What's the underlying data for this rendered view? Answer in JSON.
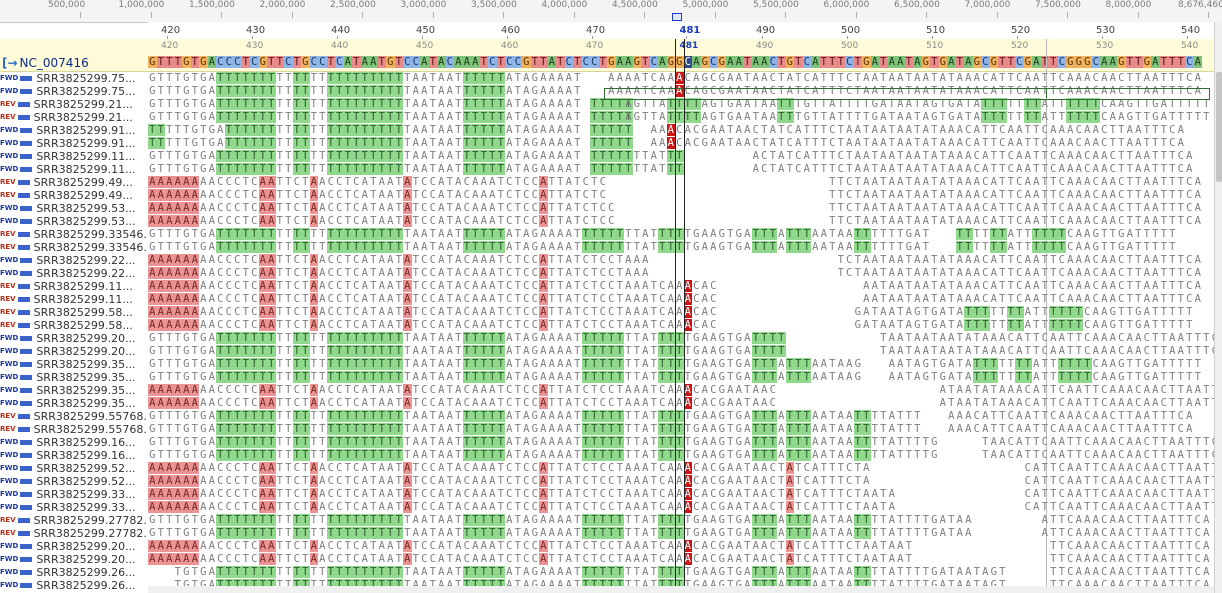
{
  "overview": {
    "ticks": [
      "500,000",
      "1,000,000",
      "1,500,000",
      "2,000,000",
      "2,500,000",
      "3,000,000",
      "3,500,000",
      "4,000,000",
      "4,500,000",
      "5,000,000",
      "5,500,000",
      "6,000,000",
      "6,500,000",
      "7,000,000",
      "7,500,000",
      "8,000,000",
      "8,676,460"
    ]
  },
  "ruler": {
    "labels": [
      "420",
      "430",
      "440",
      "450",
      "460",
      "470",
      "481",
      "490",
      "500",
      "510",
      "520",
      "530",
      "540"
    ],
    "highlight": "481"
  },
  "reference": {
    "name": "NC_007416",
    "icon": "reference-sequence-icon",
    "tick_labels": [
      "420",
      "430",
      "440",
      "450",
      "460",
      "470",
      "481",
      "490",
      "500",
      "510",
      "520",
      "530",
      "540"
    ],
    "sequence": "GTTTGTGACCCTCGTTCTGCCTCATAATGTCCATACAAATCTCCGTTATCTCCTGAAGTCAGGCAGCGAATAACTGTCATTTCTGATAATAGTGATAGCGTTCGATTCGGGCAAGTTGATTTCA",
    "cursor_base": "G"
  },
  "colors": {
    "match_green": "#8fd88c",
    "mismatch_red": "#ec9494",
    "snp_red": "#cc1616",
    "cursor_blue": "#1a3cc8",
    "reference_band": "#fdfbd8"
  },
  "reads": [
    {
      "name": "SRR3825299.75...",
      "dir": "FWD",
      "start": 0,
      "seq": "GTTTGTGAGGGGGGGTTGGTTGGGGGGGGGTAATAATGGGGGATAGAAAAT"
    },
    {
      "name": "SRR3825299.75...",
      "dir": "FWD",
      "start": 0,
      "seq": "GTTTGTGAGGGGGGGTTGGTTGGGGGGGGGTAATAATGGGGGATAGAAAAT"
    },
    {
      "name": "SRR3825299.21...",
      "dir": "REV",
      "start": 0,
      "seq": "GTTTGTGAGGGGGGGTTGGTTGGGGGGGGGTAATAATGGGGGATAGAAAAT GGGGG"
    },
    {
      "name": "SRR3825299.21...",
      "dir": "REV",
      "start": 0,
      "seq": "GTTTGTGAGGGGGGGTTGGTTGGGGGGGGGTAATAATGGGGGATAGAAAAT GGGGG"
    },
    {
      "name": "SRR3825299.91...",
      "dir": "FWD",
      "start": 0,
      "seq": "GGTTTGTGAGGGGGGTTGGTTGGGGGGGGGTAATAATGGGGGATAGAAAAT GGGGG"
    },
    {
      "name": "SRR3825299.91...",
      "dir": "FWD",
      "start": 0,
      "seq": "GGTTTGTGAGGGGGGTTGGTTGGGGGGGGGTAATAATGGGGGATAGAAAAT GGGGG"
    },
    {
      "name": "SRR3825299.11...",
      "dir": "FWD",
      "start": 0,
      "seq": "GTTTGTGAGGGGGGGTTGGTTGGGGGGGGGTAATAATGGGGGATAGAAAAT GGGGGTTATGG"
    },
    {
      "name": "SRR3825299.11...",
      "dir": "FWD",
      "start": 0,
      "seq": "GTTTGTGAGGGGGGGTTGGTTGGGGGGGGGTAATAATGGGGGATAGAAAAT GGGGGTTATGG"
    },
    {
      "name": "SRR3825299.49...",
      "dir": "REV",
      "start": 0,
      "seq": "RRRRRRAACCCTCRRTTCTRACCTCATAATRTCCATACAAATCTCCRTTATCTC"
    },
    {
      "name": "SRR3825299.49...",
      "dir": "REV",
      "start": 0,
      "seq": "RRRRRRAACCCTCRRTTCTRACCTCATAATRTCCATACAAATCTCCRTTATCTC"
    },
    {
      "name": "SRR3825299.53...",
      "dir": "FWD",
      "start": 0,
      "seq": "RRRRRRAACCCTCRRTTCTRACCTCATAATRTCCATACAAATCTCCRTTATCTCC"
    },
    {
      "name": "SRR3825299.53...",
      "dir": "FWD",
      "start": 0,
      "seq": "RRRRRRAACCCTCRRTTCTRACCTCATAATRTCCATACAAATCTCCRTTATCTCC"
    },
    {
      "name": "SRR3825299.33546...",
      "dir": "REV",
      "start": 0,
      "seq": "GTTTGTGAGGGGGGGTTGGTTGGGGGGGGGTAATAATGGGGGATAGAAAATGGGGGTTATGGGTGAAGTGAGGGAGGGAATAAGGTTTTGAT"
    },
    {
      "name": "SRR3825299.33546...",
      "dir": "REV",
      "start": 0,
      "seq": "GTTTGTGAGGGGGGGTTGGTTGGGGGGGGGTAATAATGGGGGATAGAAAATGGGGGTTATGGGTGAAGTGAGGGAGGGAATAAGGTTTTGAT"
    },
    {
      "name": "SRR3825299.22...",
      "dir": "FWD",
      "start": 0,
      "seq": "RRRRRRAACCCTCRRTTCTRACCTCATAATRTCCATACAAATCTCCRTTATCTCCTAAA"
    },
    {
      "name": "SRR3825299.22...",
      "dir": "FWD",
      "start": 0,
      "seq": "RRRRRRAACCCTCRRTTCTRACCTCATAATRTCCATACAAATCTCCRTTATCTCCTAAA"
    },
    {
      "name": "SRR3825299.11...",
      "dir": "REV",
      "start": 0,
      "seq": "RRRRRRAACCCTCRRTTCTRACCTCATAATRTCCATACAAATCTCCRTTATCTCCTAAATCAAXCAC"
    },
    {
      "name": "SRR3825299.11...",
      "dir": "REV",
      "start": 0,
      "seq": "RRRRRRAACCCTCRRTTCTRACCTCATAATRTCCATACAAATCTCCRTTATCTCCTAAATCAAXCAC"
    },
    {
      "name": "SRR3825299.58...",
      "dir": "REV",
      "start": 0,
      "seq": "RRRRRRAACCCTCRRTTCTRACCTCATAATRTCCATACAAATCTCCRTTATCTCCTAAATCAAXCAC"
    },
    {
      "name": "SRR3825299.58...",
      "dir": "REV",
      "start": 0,
      "seq": "RRRRRRAACCCTCRRTTCTRACCTCATAATRTCCATACAAATCTCCRTTATCTCCTAAATCAAXCAC"
    },
    {
      "name": "SRR3825299.20...",
      "dir": "FWD",
      "start": 0,
      "seq": "GTTTGTGAGGGGGGGTTGGTTGGGGGGGGGTAATAATGGGGGATAGAAAATGGGGGTTATGGGTGAAGTGAGGGG"
    },
    {
      "name": "SRR3825299.20...",
      "dir": "FWD",
      "start": 0,
      "seq": "GTTTGTGAGGGGGGGTTGGTTGGGGGGGGGTAATAATGGGGGATAGAAAATGGGGGTTATGGGTGAAGTGAGGGG"
    },
    {
      "name": "SRR3825299.35...",
      "dir": "FWD",
      "start": 0,
      "seq": "GTTTGTGAGGGGGGGTTGGTTGGGGGGGGGTAATAATGGGGGATAGAAAATGGGGGTTATGGGTGAAGTGAGGGAGGGAATAAG"
    },
    {
      "name": "SRR3825299.35...",
      "dir": "FWD",
      "start": 0,
      "seq": "GTTTGTGAGGGGGGGTTGGTTGGGGGGGGGTAATAATGGGGGATAGAAAATGGGGGTTATGGGTGAAGTGAGGGAGGGAATAAG"
    },
    {
      "name": "SRR3825299.35...",
      "dir": "FWD",
      "start": 0,
      "seq": "RRRRRRAACCCTCRRTTCTRACCTCATAATRTCCATACAAATCTCCRTTATCTCCTAAATCAAXCACGAATAAC"
    },
    {
      "name": "SRR3825299.35...",
      "dir": "FWD",
      "start": 0,
      "seq": "RRRRRRAACCCTCRRTTCTRACCTCATAATRTCCATACAAATCTCCRTTATCTCCTAAATCAAXCACGAATAAC"
    },
    {
      "name": "SRR3825299.55768...",
      "dir": "REV",
      "start": 0,
      "seq": "GTTTGTGAGGGGGGGTTGGTTGGGGGGGGGTAATAATGGGGGATAGAAAATGGGGGTTATGGGTGAAGTGAGGGAGGGAATAAGGTTATTT"
    },
    {
      "name": "SRR3825299.55768...",
      "dir": "REV",
      "start": 0,
      "seq": "GTTTGTGAGGGGGGGTTGGTTGGGGGGGGGTAATAATGGGGGATAGAAAATGGGGGTTATGGGTGAAGTGAGGGAGGGAATAAGGTTATTT"
    },
    {
      "name": "SRR3825299.16...",
      "dir": "FWD",
      "start": 0,
      "seq": "GTTTGTGAGGGGGGGTTGGTTGGGGGGGGGTAATAATGGGGGATAGAAAATGGGGGTTATGGGTGAAGTGAGGGAGGGAATAAGGTTATTTTG"
    },
    {
      "name": "SRR3825299.16...",
      "dir": "FWD",
      "start": 0,
      "seq": "GTTTGTGAGGGGGGGTTGGTTGGGGGGGGGTAATAATGGGGGATAGAAAATGGGGGTTATGGGTGAAGTGAGGGAGGGAATAAGGTTATTTTG"
    },
    {
      "name": "SRR3825299.52...",
      "dir": "FWD",
      "start": 0,
      "seq": "RRRRRRAACCCTCRRTTCTRACCTCATAATRTCCATACAAATCTCCRTTATCTCCTAAATCAAXCACGAATAACTRTCATTTCTA"
    },
    {
      "name": "SRR3825299.52...",
      "dir": "FWD",
      "start": 0,
      "seq": "RRRRRRAACCCTCRRTTCTRACCTCATAATRTCCATACAAATCTCCRTTATCTCCTAAATCAAXCACGAATAACTRTCATTTCTA"
    },
    {
      "name": "SRR3825299.33...",
      "dir": "FWD",
      "start": 0,
      "seq": "RRRRRRAACCCTCRRTTCTRACCTCATAATRTCCATACAAATCTCCRTTATCTCCTAAATCAAXCACGAATAACTRTCATTTCTAATA"
    },
    {
      "name": "SRR3825299.33...",
      "dir": "FWD",
      "start": 0,
      "seq": "RRRRRRAACCCTCRRTTCTRACCTCATAATRTCCATACAAATCTCCRTTATCTCCTAAATCAAXCACGAATAACTRTCATTTCTAATA"
    },
    {
      "name": "SRR3825299.27782...",
      "dir": "REV",
      "start": 0,
      "seq": "GTTTGTGAGGGGGGGTTGGTTGGGGGGGGGTAATAATGGGGGATAGAAAATGGGGGTTATGGGTGAAGTGAGGGAGGGAATAAGGTTATTTTGATAA"
    },
    {
      "name": "SRR3825299.27782...",
      "dir": "REV",
      "start": 0,
      "seq": "GTTTGTGAGGGGGGGTTGGTTGGGGGGGGGTAATAATGGGGGATAGAAAATGGGGGTTATGGGTGAAGTGAGGGAGGGAATAAGGTTATTTTGATAA"
    },
    {
      "name": "SRR3825299.20...",
      "dir": "FWD",
      "start": 0,
      "seq": "RRRRRRAACCCTCRRTTCTRACCTCATAATRTCCATACAAATCTCCRTTATCTCCTAAATCAAXCACGAATAACTRTCATTTCTAATAAT"
    },
    {
      "name": "SRR3825299.20...",
      "dir": "FWD",
      "start": 0,
      "seq": "RRRRRRAACCCTCRRTTCTRACCTCATAATRTCCATACAAATCTCCRTTATCTCCTAAATCAAXCACGAATAACTRTCATTTCTAATAAT"
    },
    {
      "name": "SRR3825299.26...",
      "dir": "FWD",
      "start": 3,
      "seq": "TGTGAGGGGGGGTTGGTTGGGGGGGGGTAATAATGGGGGATAGAAAATGGGGGTTATGGGTGAAGTGAGGGAGGGAATAAGGTTATTTTGATAATAGT"
    },
    {
      "name": "SRR3825299.26...",
      "dir": "FWD",
      "start": 3,
      "seq": "TGTGAGGGGGGGTTGGTTGGGGGGGGGTAATAATGGGGGATAGAAAATGGGGGTTATGGGTGAAGTGAGGGAGGGAATAAGGTTATTTTGATAATAGT"
    }
  ],
  "read_tails": [
    {
      "start": 54,
      "seq": "AAAATCAAXCAGCGAATAACTATCATTTCTAATAATAATATAAACATTCAATTCAAACAACTTAATTTCA"
    },
    {
      "start": 54,
      "seq": "AAAATCAAXCAGCGAATAACTATCATTTCTAATAATAATATAAACATTCAATTCAAACAACTTAATTTCA"
    },
    {
      "start": 56,
      "seq": "AGTTAGGGGAGTGAATAAGGTGTTATTTTGATAATAGTGATAGGGTTGGATTGGGGCAAGTTGATTTTT"
    },
    {
      "start": 56,
      "seq": "AGTTAGGGGAGTGAATAAGGTGTTATTTTGATAATAGTGATAGGGTTGGATTGGGGCAAGTTGATTTTT"
    },
    {
      "start": 59,
      "seq": "AAXCACGAATAACTATCATTTCTAATAATAATATAAACATTCAATTCAAACAACTTAATTTCA"
    },
    {
      "start": 59,
      "seq": "AAXCACGAATAACTATCATTTCTAATAATAATATAAACATTCAATTCAAACAACTTAATTTCA"
    },
    {
      "start": 71,
      "seq": "ACTATCATTTCTAATAATAATATAAACATTCAATTCAAACAACTTAATTTCA"
    },
    {
      "start": 71,
      "seq": "ACTATCATTTCTAATAATAATATAAACATTCAATTCAAACAACTTAATTTCA"
    },
    {
      "start": 80,
      "seq": "TTCTAATAATAATATAAACATTCAATTCAAACAACTTAATTTCA"
    },
    {
      "start": 80,
      "seq": "TTCTAATAATAATATAAACATTCAATTCAAACAACTTAATTTCA"
    },
    {
      "start": 80,
      "seq": "TTCTAATAATAATATAAACATTCAATTCAAACAACTTAATTTCA"
    },
    {
      "start": 80,
      "seq": "TTCTAATAATAATATAAACATTCAATTCAAACAACTTAATTTCA"
    },
    {
      "start": 95,
      "seq": "GGTTGGATTGGGGCAAGTTGATTTTT"
    },
    {
      "start": 95,
      "seq": "GGTTGGATTGGGGCAAGTTGATTTTT"
    },
    {
      "start": 81,
      "seq": "TCTAATAATAATATAAACATTCAATTCAAACAACTTAATTTCA"
    },
    {
      "start": 81,
      "seq": "TCTAATAATAATATAAACATTCAATTCAAACAACTTAATTTCA"
    },
    {
      "start": 84,
      "seq": "AATAATAATATAAACATTCAATTCAAACAACTTAATTTCA"
    },
    {
      "start": 84,
      "seq": "AATAATAATATAAACATTCAATTCAAACAACTTAATTTCA"
    },
    {
      "start": 83,
      "seq": "GATAATAGTGATAGGGTTGGATTGGGGCAAGTTGATTTTT"
    },
    {
      "start": 83,
      "seq": "GATAATAGTGATAGGGTTGGATTGGGGCAAGTTGATTTTT"
    },
    {
      "start": 86,
      "seq": "TAATAATAATATAAACATTCAATTCAAACAACTTAATTTCA"
    },
    {
      "start": 86,
      "seq": "TAATAATAATATAAACATTCAATTCAAACAACTTAATTTCA"
    },
    {
      "start": 87,
      "seq": "AATAGTGATAGGGTTGGATTGGGGCAAGTTGATTTTT"
    },
    {
      "start": 87,
      "seq": "AATAGTGATAGGGTTGGATTGGGGCAAGTTGATTTTT"
    },
    {
      "start": 93,
      "seq": "ATAATATAAACATTCAATTCAAACAACTTAATTTCA"
    },
    {
      "start": 93,
      "seq": "ATAATATAAACATTCAATTCAAACAACTTAATTTCA"
    },
    {
      "start": 94,
      "seq": "AAACATTCAATTCAAACAACTTAATTTCA"
    },
    {
      "start": 94,
      "seq": "AAACATTCAATTCAAACAACTTAATTTCA"
    },
    {
      "start": 98,
      "seq": "TAACATTCAATTCAAACAACTTAATTTCA"
    },
    {
      "start": 98,
      "seq": "TAACATTCAATTCAAACAACTTAATTTCA"
    },
    {
      "start": 103,
      "seq": "CATTCAATTCAAACAACTTAATTTCA"
    },
    {
      "start": 103,
      "seq": "CATTCAATTCAAACAACTTAATTTCA"
    },
    {
      "start": 103,
      "seq": "CATTCAATTCAAACAACTTAATTTCA"
    },
    {
      "start": 103,
      "seq": "CATTCAATTCAAACAACTTAATTTCA"
    },
    {
      "start": 105,
      "seq": "ATTCAAACAACTTAATTTCA"
    },
    {
      "start": 105,
      "seq": "ATTCAAACAACTTAATTTCA"
    },
    {
      "start": 106,
      "seq": "TTCAAACAACTTAATTTCA"
    },
    {
      "start": 106,
      "seq": "TTCAAACAACTTAATTTCA"
    },
    {
      "start": 106,
      "seq": "TTCAAACAACTTAATTTCA"
    },
    {
      "start": 106,
      "seq": "TTCAAACAACTTAATTTCA"
    }
  ]
}
